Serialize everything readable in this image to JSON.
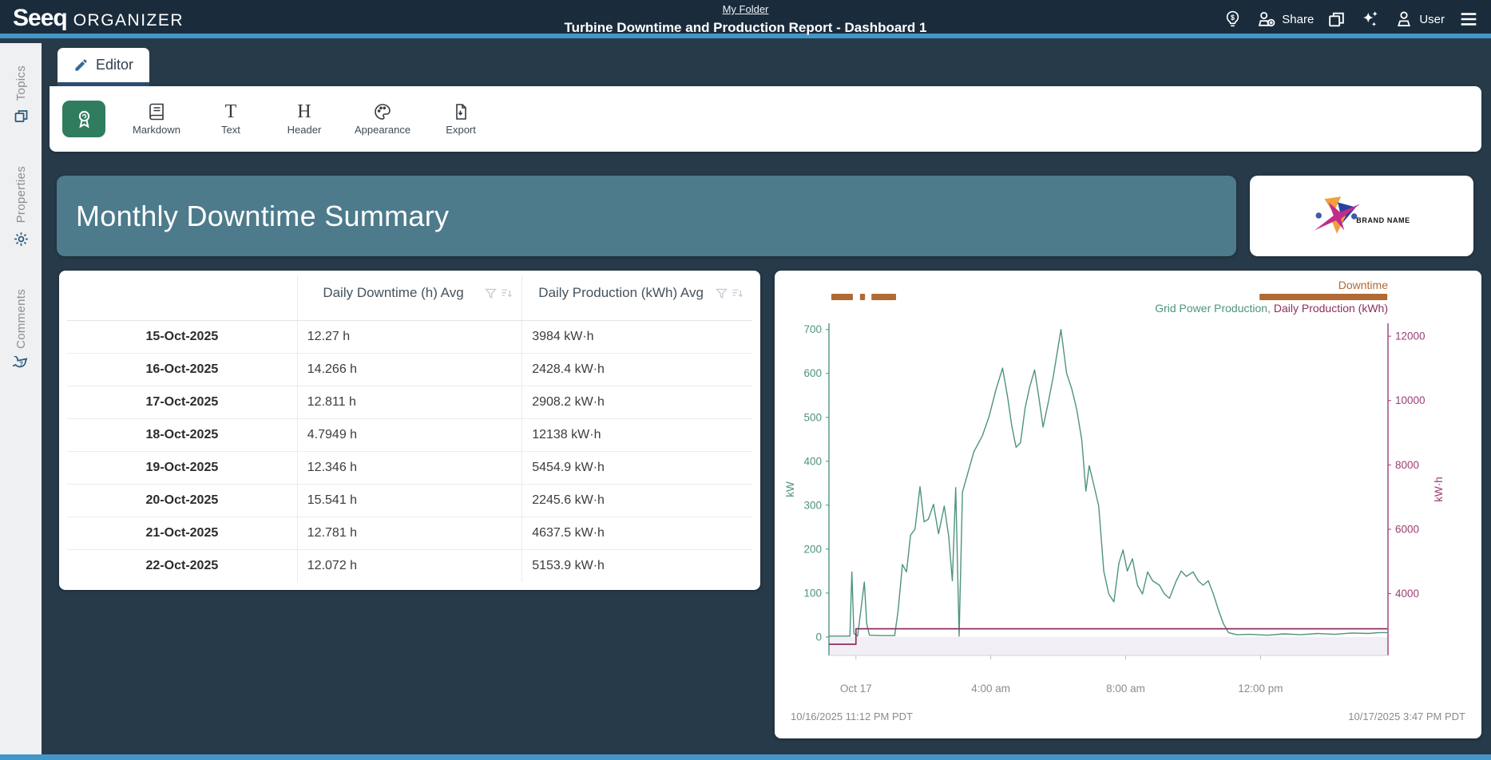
{
  "navbar": {
    "logo_primary": "Seeq",
    "logo_secondary": "ORGANIZER",
    "breadcrumb": "My Folder",
    "document_title": "Turbine Downtime and Production Report - Dashboard 1",
    "share_label": "Share",
    "user_label": "User"
  },
  "sidebar": {
    "items": [
      {
        "label": "Topics"
      },
      {
        "label": "Properties"
      },
      {
        "label": "Comments"
      }
    ]
  },
  "editor": {
    "tab_label": "Editor"
  },
  "toolbar": {
    "items": [
      {
        "label": "Markdown"
      },
      {
        "label": "Text"
      },
      {
        "label": "Header"
      },
      {
        "label": "Appearance"
      },
      {
        "label": "Export"
      }
    ]
  },
  "banner": {
    "title": "Monthly Downtime Summary"
  },
  "brand": {
    "name": "BRAND NAME"
  },
  "table": {
    "columns": [
      "",
      "Daily Downtime (h) Avg",
      "Daily Production (kWh) Avg"
    ],
    "rows": [
      {
        "date": "15-Oct-2025",
        "downtime": "12.27 h",
        "production": "3984 kW·h"
      },
      {
        "date": "16-Oct-2025",
        "downtime": "14.266 h",
        "production": "2428.4 kW·h"
      },
      {
        "date": "17-Oct-2025",
        "downtime": "12.811 h",
        "production": "2908.2 kW·h"
      },
      {
        "date": "18-Oct-2025",
        "downtime": "4.7949 h",
        "production": "12138 kW·h"
      },
      {
        "date": "19-Oct-2025",
        "downtime": "12.346 h",
        "production": "5454.9 kW·h"
      },
      {
        "date": "20-Oct-2025",
        "downtime": "15.541 h",
        "production": "2245.6 kW·h"
      },
      {
        "date": "21-Oct-2025",
        "downtime": "12.781 h",
        "production": "4637.5 kW·h"
      },
      {
        "date": "22-Oct-2025",
        "downtime": "12.072 h",
        "production": "5153.9 kW·h"
      }
    ]
  },
  "chart_data": {
    "type": "line",
    "x_axis": {
      "range_hours": 16.58,
      "ticks": [
        {
          "hour": 0.8,
          "label": "Oct 17"
        },
        {
          "hour": 4.8,
          "label": "4:00 am"
        },
        {
          "hour": 8.8,
          "label": "8:00 am"
        },
        {
          "hour": 12.8,
          "label": "12:00 pm"
        }
      ]
    },
    "left_axis": {
      "label": "kW",
      "color": "#4e937f",
      "ticks": [
        0,
        100,
        200,
        300,
        400,
        500,
        600,
        700
      ],
      "range": [
        -42,
        714
      ]
    },
    "right_axis": {
      "label": "kW·h",
      "color": "#9c3d75",
      "ticks": [
        4000,
        6000,
        8000,
        10000,
        12000
      ],
      "range": [
        2080,
        12400
      ]
    },
    "condition": {
      "label": "Downtime",
      "color": "#b06a35",
      "intervals_hours": [
        [
          0.07,
          0.71
        ],
        [
          0.92,
          1.07
        ],
        [
          1.26,
          1.99
        ],
        [
          12.77,
          16.56
        ]
      ]
    },
    "legend_separator": ", ",
    "series": [
      {
        "name": "Grid Power Production",
        "color": "#4e937f",
        "axis": "left",
        "points": [
          [
            0,
            2
          ],
          [
            0.55,
            2
          ],
          [
            0.62,
            2
          ],
          [
            0.68,
            148
          ],
          [
            0.74,
            8
          ],
          [
            0.85,
            2
          ],
          [
            1.05,
            125
          ],
          [
            1.12,
            30
          ],
          [
            1.2,
            4
          ],
          [
            1.55,
            3
          ],
          [
            1.95,
            3
          ],
          [
            2.05,
            60
          ],
          [
            2.18,
            165
          ],
          [
            2.3,
            148
          ],
          [
            2.42,
            232
          ],
          [
            2.55,
            245
          ],
          [
            2.7,
            342
          ],
          [
            2.82,
            262
          ],
          [
            2.95,
            268
          ],
          [
            3.1,
            302
          ],
          [
            3.25,
            235
          ],
          [
            3.42,
            298
          ],
          [
            3.55,
            230
          ],
          [
            3.66,
            128
          ],
          [
            3.76,
            340
          ],
          [
            3.86,
            2
          ],
          [
            3.96,
            330
          ],
          [
            4.1,
            368
          ],
          [
            4.3,
            422
          ],
          [
            4.55,
            458
          ],
          [
            4.75,
            502
          ],
          [
            4.95,
            562
          ],
          [
            5.15,
            612
          ],
          [
            5.3,
            545
          ],
          [
            5.42,
            482
          ],
          [
            5.55,
            432
          ],
          [
            5.68,
            442
          ],
          [
            5.82,
            522
          ],
          [
            5.95,
            568
          ],
          [
            6.1,
            608
          ],
          [
            6.22,
            548
          ],
          [
            6.35,
            478
          ],
          [
            6.5,
            532
          ],
          [
            6.65,
            592
          ],
          [
            6.88,
            700
          ],
          [
            7.05,
            600
          ],
          [
            7.2,
            565
          ],
          [
            7.35,
            518
          ],
          [
            7.5,
            448
          ],
          [
            7.62,
            332
          ],
          [
            7.72,
            390
          ],
          [
            7.85,
            348
          ],
          [
            8,
            298
          ],
          [
            8.15,
            150
          ],
          [
            8.3,
            98
          ],
          [
            8.45,
            80
          ],
          [
            8.6,
            168
          ],
          [
            8.72,
            198
          ],
          [
            8.85,
            150
          ],
          [
            9,
            178
          ],
          [
            9.15,
            118
          ],
          [
            9.3,
            98
          ],
          [
            9.45,
            148
          ],
          [
            9.6,
            128
          ],
          [
            9.8,
            118
          ],
          [
            9.95,
            98
          ],
          [
            10.1,
            88
          ],
          [
            10.3,
            128
          ],
          [
            10.45,
            150
          ],
          [
            10.6,
            138
          ],
          [
            10.8,
            148
          ],
          [
            10.95,
            128
          ],
          [
            11.1,
            118
          ],
          [
            11.25,
            128
          ],
          [
            11.4,
            98
          ],
          [
            11.55,
            62
          ],
          [
            11.7,
            30
          ],
          [
            11.85,
            10
          ],
          [
            12.1,
            5
          ],
          [
            12.5,
            6
          ],
          [
            13,
            4
          ],
          [
            13.5,
            7
          ],
          [
            14,
            5
          ],
          [
            14.5,
            8
          ],
          [
            15,
            6
          ],
          [
            15.5,
            9
          ],
          [
            16,
            8
          ],
          [
            16.3,
            10
          ],
          [
            16.56,
            10
          ]
        ]
      },
      {
        "name": "Daily Production (kWh)",
        "color": "#8d2f63",
        "axis": "right",
        "points": [
          [
            0,
            2428
          ],
          [
            0.8,
            2428
          ],
          [
            0.8,
            2908
          ],
          [
            16.56,
            2908
          ]
        ]
      }
    ],
    "footer_left": "10/16/2025 11:12 PM PDT",
    "footer_right": "10/17/2025 3:47 PM PDT"
  }
}
